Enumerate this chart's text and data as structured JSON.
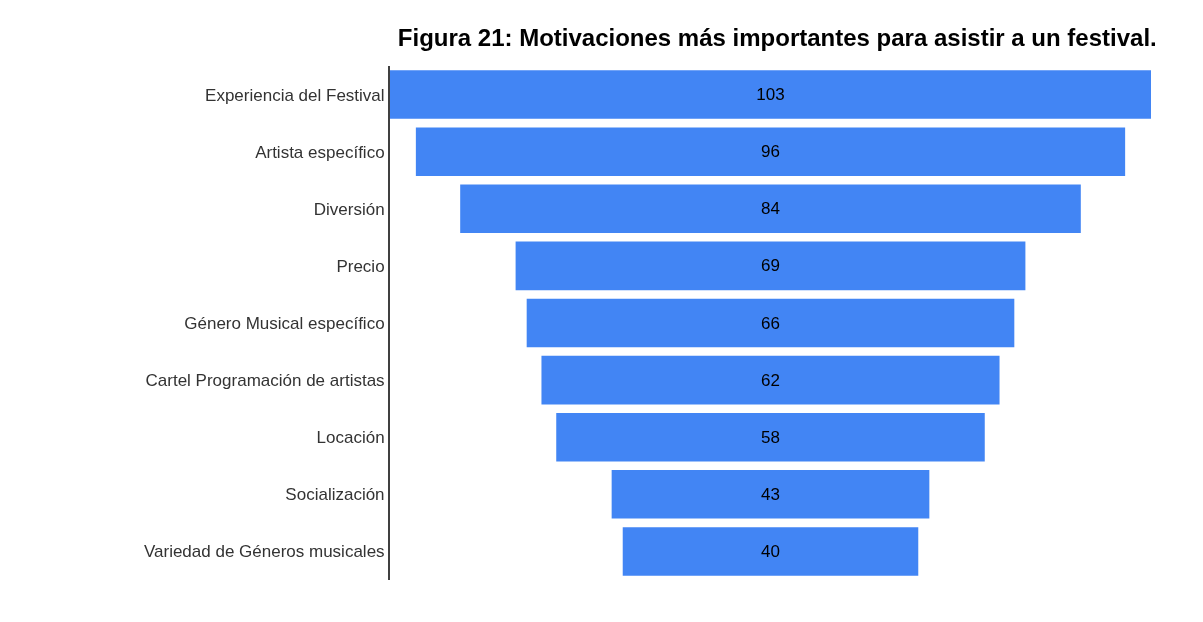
{
  "chart_data": {
    "type": "other",
    "title": "Figura 21: Motivaciones más importantes para asistir a un festival.",
    "categories": [
      "Experiencia del Festival",
      "Artista específico",
      "Diversión",
      "Precio",
      "Género Musical específico",
      "Cartel Programación de artistas",
      "Locación",
      "Socialización",
      "Variedad de Géneros musicales"
    ],
    "values": [
      103,
      96,
      84,
      69,
      66,
      62,
      58,
      43,
      40
    ],
    "color": "#4285f4",
    "data_labels": true
  }
}
